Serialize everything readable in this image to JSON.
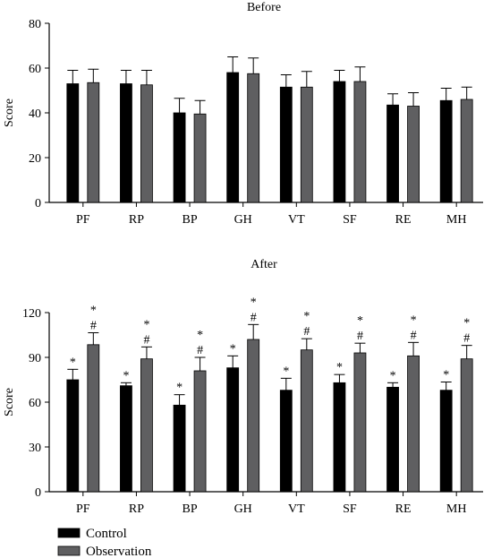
{
  "chart_data": [
    {
      "type": "bar",
      "title": "Before",
      "xlabel": "",
      "ylabel": "Score",
      "ylim": [
        0,
        80
      ],
      "yticks": [
        0,
        20,
        40,
        60,
        80
      ],
      "categories": [
        "PF",
        "RP",
        "BP",
        "GH",
        "VT",
        "SF",
        "RE",
        "MH"
      ],
      "series": [
        {
          "name": "Control",
          "color": "#000000",
          "values": [
            53,
            53,
            40,
            58,
            51.5,
            54,
            43.5,
            45.5
          ],
          "errors": [
            6,
            6,
            6.5,
            7,
            5.5,
            5,
            5,
            5.5
          ],
          "markers": [
            "",
            "",
            "",
            "",
            "",
            "",
            "",
            ""
          ]
        },
        {
          "name": "Observation",
          "color": "#5f5f61",
          "values": [
            53.5,
            52.5,
            39.5,
            57.5,
            51.5,
            54,
            43,
            46
          ],
          "errors": [
            6,
            6.5,
            6,
            7,
            7,
            6.5,
            6,
            5.5
          ],
          "markers": [
            "",
            "",
            "",
            "",
            "",
            "",
            "",
            ""
          ]
        }
      ],
      "grid": false
    },
    {
      "type": "bar",
      "title": "After",
      "xlabel": "",
      "ylabel": "Score",
      "ylim": [
        0,
        120
      ],
      "yticks": [
        0,
        30,
        60,
        90,
        120
      ],
      "categories": [
        "PF",
        "RP",
        "BP",
        "GH",
        "VT",
        "SF",
        "RE",
        "MH"
      ],
      "series": [
        {
          "name": "Control",
          "color": "#000000",
          "values": [
            75,
            71,
            58,
            83,
            68,
            73,
            70,
            68
          ],
          "errors": [
            7,
            2,
            7,
            8,
            8,
            5.5,
            3,
            5.5
          ],
          "markers": [
            "*",
            "*",
            "*",
            "*",
            "*",
            "*",
            "*",
            "*"
          ]
        },
        {
          "name": "Observation",
          "color": "#5f5f61",
          "values": [
            98.5,
            89,
            81,
            102,
            95,
            93,
            91,
            89
          ],
          "errors": [
            8,
            8,
            9,
            10,
            7.5,
            6.5,
            9,
            9
          ],
          "markers": [
            "*\n#",
            "*\n#",
            "*\n#",
            "*\n#",
            "*\n#",
            "*\n#",
            "*\n#",
            "*\n#"
          ]
        }
      ],
      "grid": false
    }
  ],
  "legend": {
    "placement": "bottom-left",
    "items": [
      {
        "label": "Control",
        "color": "#000000"
      },
      {
        "label": "Observation",
        "color": "#5f5f61"
      }
    ]
  }
}
